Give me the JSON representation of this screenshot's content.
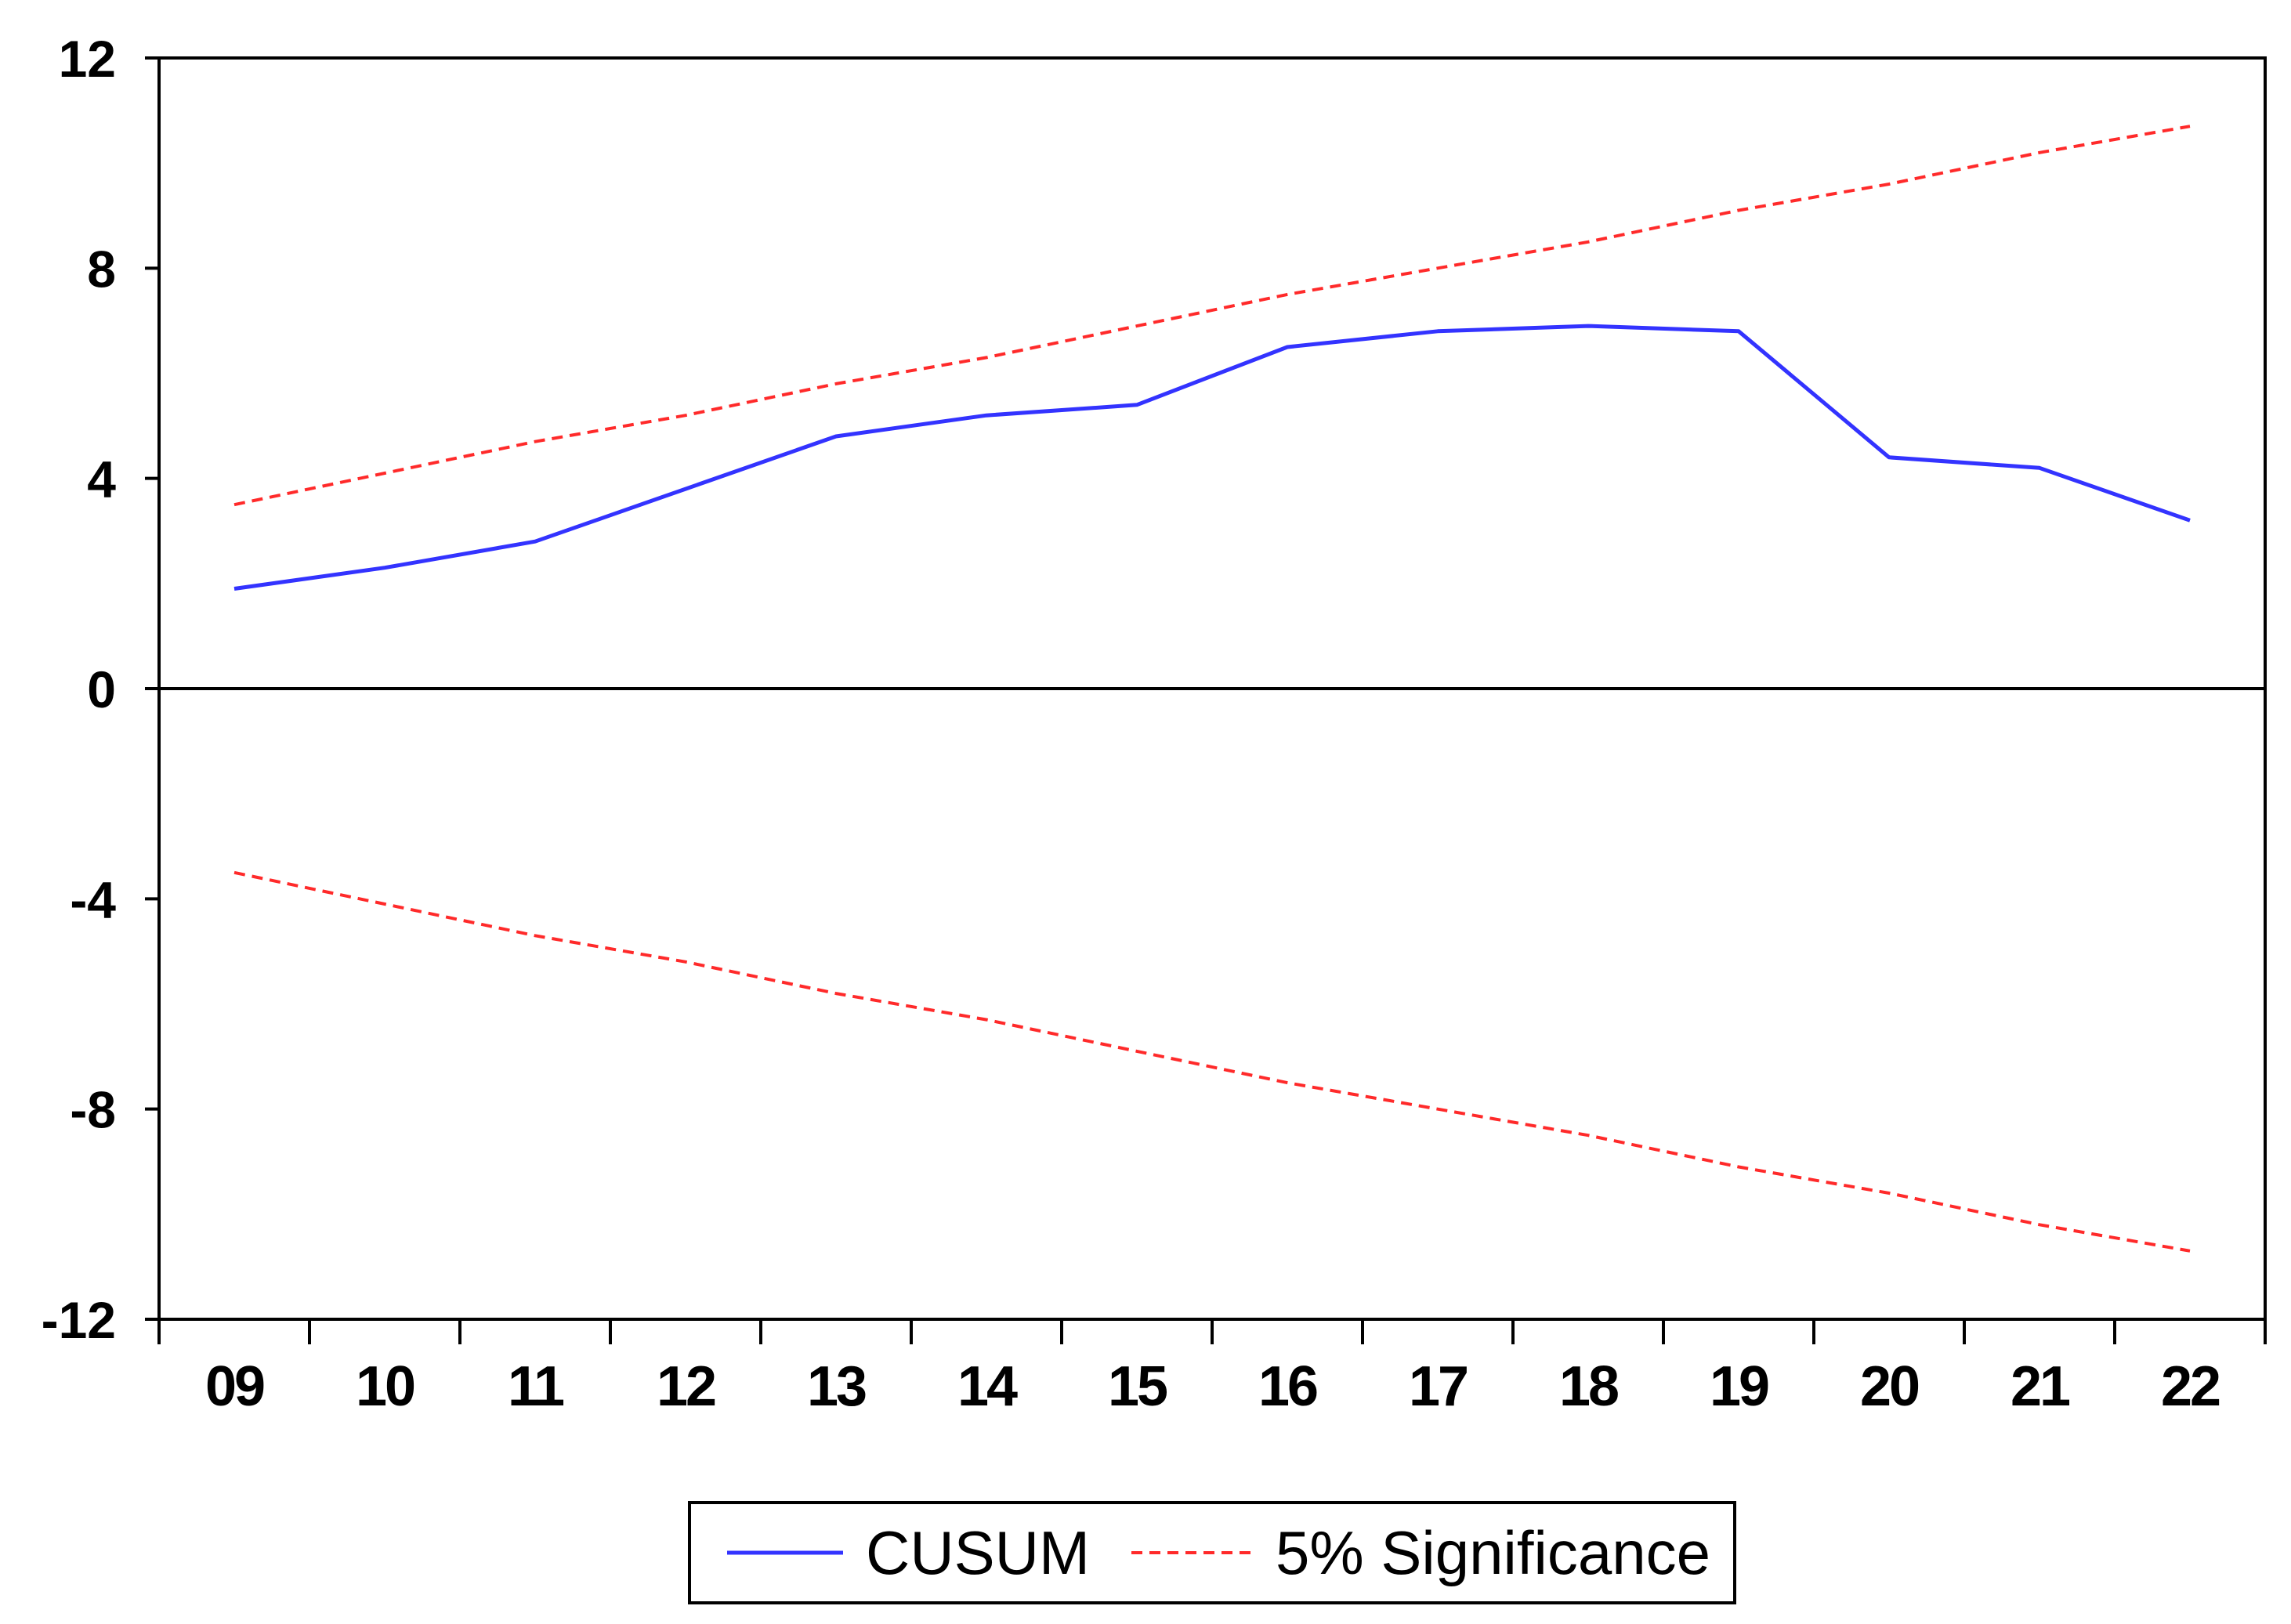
{
  "chart_data": {
    "type": "line",
    "title": "",
    "xlabel": "",
    "ylabel": "",
    "x": [
      "09",
      "10",
      "11",
      "12",
      "13",
      "14",
      "15",
      "16",
      "17",
      "18",
      "19",
      "20",
      "21",
      "22"
    ],
    "ylim": [
      -12,
      12
    ],
    "yticks": [
      12,
      8,
      4,
      0,
      -4,
      -8,
      -12
    ],
    "grid": false,
    "zero_line": true,
    "legend_position": "bottom-center",
    "series": [
      {
        "name": "CUSUM",
        "style": "solid",
        "color": "#3333ff",
        "values": [
          1.9,
          2.3,
          2.8,
          3.8,
          4.8,
          5.2,
          5.4,
          6.5,
          6.8,
          6.9,
          6.8,
          4.4,
          4.2,
          3.2
        ]
      },
      {
        "name": "5% Significance",
        "style": "dashed",
        "color": "#ff2a2a",
        "values": [
          3.5,
          4.1,
          4.7,
          5.2,
          5.8,
          6.3,
          6.9,
          7.5,
          8.0,
          8.5,
          9.1,
          9.6,
          10.2,
          10.7
        ]
      },
      {
        "style": "dashed",
        "color": "#ff2a2a",
        "values": [
          -3.5,
          -4.1,
          -4.7,
          -5.2,
          -5.8,
          -6.3,
          -6.9,
          -7.5,
          -8.0,
          -8.5,
          -9.1,
          -9.6,
          -10.2,
          -10.7
        ]
      }
    ],
    "legend": [
      {
        "label": "CUSUM",
        "style": "solid",
        "color": "#3333ff"
      },
      {
        "label": "5% Significance",
        "style": "dashed",
        "color": "#ff2a2a"
      }
    ]
  }
}
